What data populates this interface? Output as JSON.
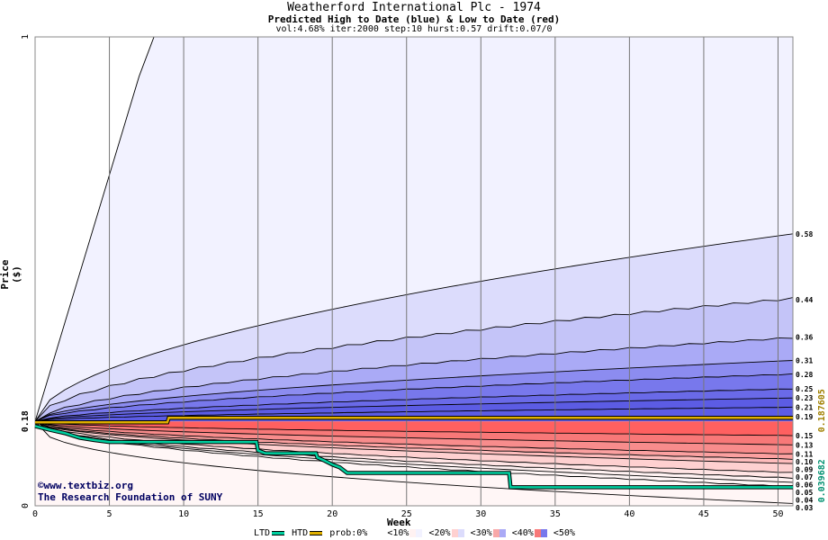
{
  "title": "Weatherford International Plc - 1974",
  "subtitle": "Predicted High to Date (blue) &  Low to Date (red)",
  "params": "vol:4.68% iter:2000 step:10 hurst:0.57 drift:0.07/0",
  "credit_line1": "www.textbiz.org",
  "credit_line2": "The Research Foundation of SUNY",
  "legend": {
    "ltd": "LTD",
    "htd": "HTD",
    "prob": "prob:0%",
    "bins": [
      "<10%",
      "<20%",
      "<30%",
      "<40%",
      "<50%"
    ],
    "colors": {
      "ltd": "#00d0a0",
      "htd": "#e0b000"
    }
  },
  "chart_data": {
    "type": "area",
    "xlabel": "Week",
    "ylabel": "Price ($)",
    "xlim": [
      0,
      51
    ],
    "ylim": [
      0,
      1
    ],
    "x_ticks": [
      0,
      5,
      10,
      15,
      20,
      25,
      30,
      35,
      40,
      45,
      50
    ],
    "y_ticks": [
      0,
      0.18,
      1
    ],
    "start_price": 0.18,
    "right_labels": [
      "0.58",
      "0.44",
      "0.36",
      "0.31",
      "0.28",
      "0.25",
      "0.23",
      "0.21",
      "0.19",
      "0.15",
      "0.13",
      "0.11",
      "0.10",
      "0.09",
      "0.07",
      "0.06",
      "0.05",
      "0.04",
      "0.03"
    ],
    "right_values": [
      0.58,
      0.44,
      0.36,
      0.31,
      0.28,
      0.25,
      0.23,
      0.21,
      0.19,
      0.15,
      0.13,
      0.11,
      0.1,
      0.09,
      0.07,
      0.06,
      0.05,
      0.04,
      0.03
    ],
    "high_quantiles_end": [
      1.0,
      0.58,
      0.44,
      0.36,
      0.31,
      0.28,
      0.25,
      0.23,
      0.21
    ],
    "low_quantiles_end": [
      0.15,
      0.13,
      0.11,
      0.1,
      0.09,
      0.07,
      0.06,
      0.05,
      0.04,
      0.0
    ],
    "high_band_colors": [
      "#f2f2ff",
      "#dcdcfc",
      "#c4c4f8",
      "#aaaaf6",
      "#8c8cf0",
      "#7878ec",
      "#6a6ae8",
      "#5c5ce4"
    ],
    "low_band_colors": [
      "#ff6060",
      "#f87878",
      "#f88c8c",
      "#fba0a0",
      "#fdbcbc",
      "#fed0d0",
      "#ffe4e4",
      "#fff2f2",
      "#fff6f6"
    ],
    "htd_series": {
      "name": "HTD",
      "x": [
        0,
        8.9,
        9.0,
        51
      ],
      "y": [
        0.178,
        0.178,
        0.187605,
        0.187605
      ],
      "end_label": "0.187605"
    },
    "ltd_series": {
      "name": "LTD",
      "x": [
        0,
        1,
        2,
        3,
        4,
        5,
        14.9,
        15,
        15.5,
        18.9,
        19,
        19.5,
        20,
        20.5,
        21,
        31.9,
        32,
        51
      ],
      "y": [
        0.17,
        0.162,
        0.155,
        0.145,
        0.14,
        0.136,
        0.136,
        0.118,
        0.112,
        0.112,
        0.103,
        0.096,
        0.088,
        0.082,
        0.07,
        0.07,
        0.0396,
        0.039682
      ],
      "end_label": "0.039682"
    }
  }
}
